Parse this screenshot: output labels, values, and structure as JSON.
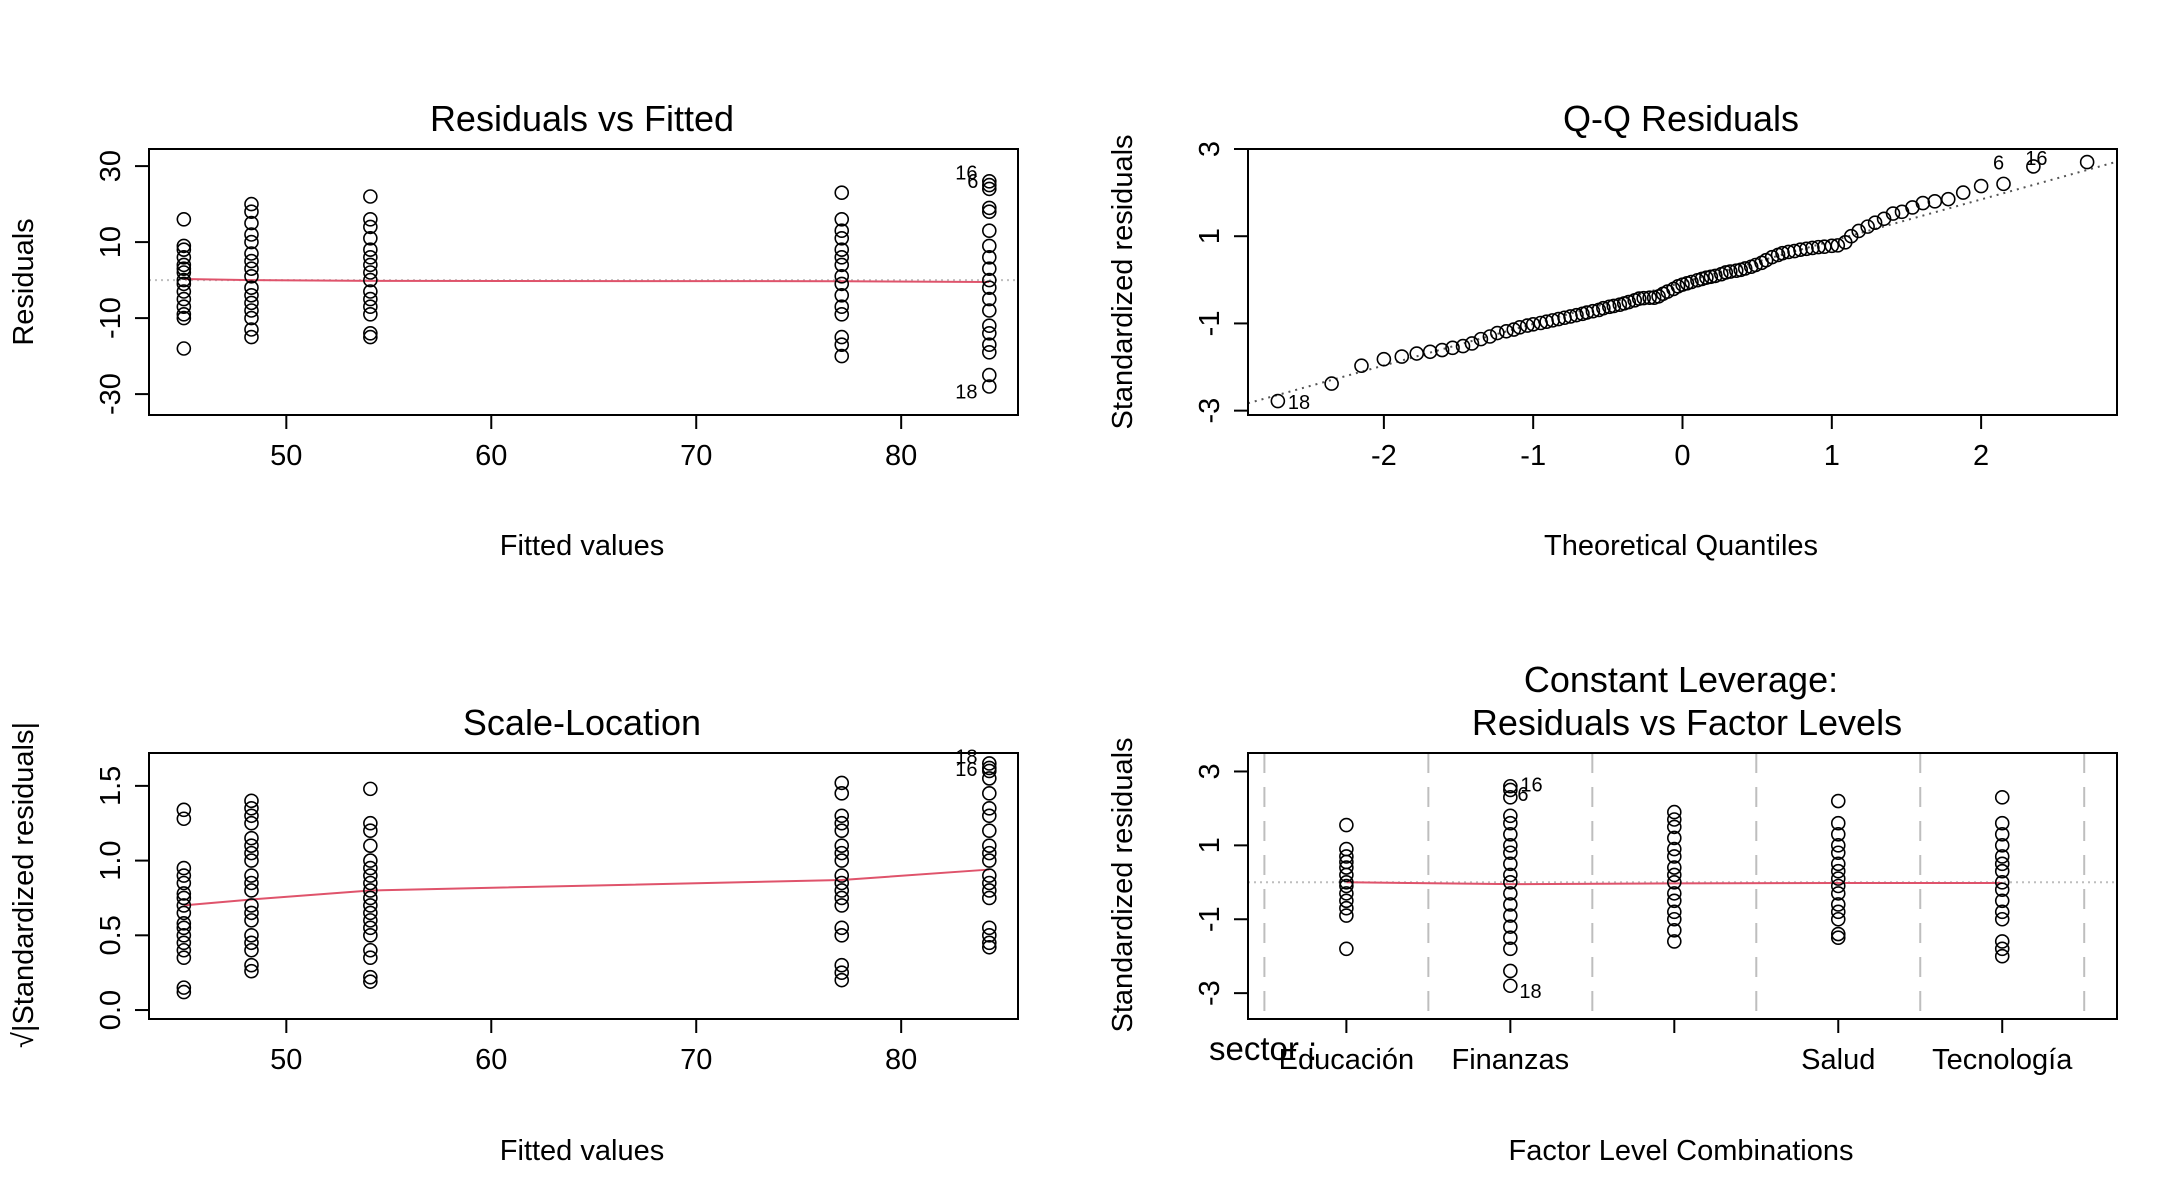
{
  "chart_data": [
    {
      "id": "rvf",
      "type": "scatter",
      "title": "Residuals vs Fitted",
      "xlabel": "Fitted values",
      "ylabel": "Residuals",
      "xlim": [
        43.3,
        85.7
      ],
      "ylim": [
        -35.5,
        34.5
      ],
      "x_ticks": [
        50,
        60,
        70,
        80
      ],
      "y_ticks": [
        30,
        10,
        -10,
        -30
      ],
      "colors": {
        "points": "#000000",
        "smoother": "#DF536B",
        "reference": "#BEBEBE"
      },
      "groups": [
        {
          "x": 45.0,
          "y": [
            16,
            9,
            8,
            6,
            4,
            3,
            2,
            0,
            -1,
            -3,
            -5,
            -7,
            -9,
            -10,
            -18
          ]
        },
        {
          "x": 48.3,
          "y": [
            20,
            18,
            15,
            12,
            10,
            7,
            5,
            3,
            1,
            -2,
            -4,
            -6,
            -8,
            -10,
            -13,
            -15
          ]
        },
        {
          "x": 54.1,
          "y": [
            22,
            16,
            14,
            11,
            8,
            6,
            4,
            2,
            0,
            -3,
            -5,
            -7,
            -9,
            -14,
            -15
          ]
        },
        {
          "x": 77.1,
          "y": [
            23,
            16,
            13,
            11,
            8,
            6,
            4,
            1,
            -1,
            -4,
            -7,
            -9,
            -15,
            -17,
            -20
          ]
        },
        {
          "x": 84.3,
          "y": [
            26,
            25,
            24,
            19,
            18,
            13,
            9,
            6,
            3,
            0,
            -2,
            -5,
            -8,
            -12,
            -14,
            -17,
            -19,
            -25,
            -28
          ]
        }
      ],
      "smoother": {
        "x": [
          45.0,
          48.3,
          54.1,
          77.1,
          84.3
        ],
        "y": [
          0.3,
          0.0,
          -0.2,
          -0.3,
          -0.5
        ]
      },
      "point_labels": [
        {
          "text": "16",
          "x": 84.3,
          "y": 26
        },
        {
          "text": "6",
          "x": 84.3,
          "y": 25
        },
        {
          "text": "18",
          "x": 84.3,
          "y": -28
        }
      ]
    },
    {
      "id": "qq",
      "type": "scatter",
      "title": "Q-Q Residuals",
      "xlabel": "Theoretical Quantiles",
      "ylabel": "Standardized residuals",
      "xlim": [
        -2.91,
        2.91
      ],
      "ylim": [
        -3.1,
        3.0
      ],
      "x_ticks": [
        -2,
        -1,
        0,
        1,
        2
      ],
      "y_ticks": [
        3,
        1,
        -1,
        -3
      ],
      "colors": {
        "points": "#000000",
        "reference": "#555555"
      },
      "reference_line": {
        "x": [
          -2.91,
          2.91
        ],
        "y": [
          -2.83,
          2.71
        ]
      },
      "points": [
        [
          -2.71,
          -2.78
        ],
        [
          -2.35,
          -2.38
        ],
        [
          -2.15,
          -1.97
        ],
        [
          -2.0,
          -1.82
        ],
        [
          -1.88,
          -1.76
        ],
        [
          -1.78,
          -1.69
        ],
        [
          -1.69,
          -1.65
        ],
        [
          -1.61,
          -1.61
        ],
        [
          -1.54,
          -1.56
        ],
        [
          -1.47,
          -1.52
        ],
        [
          -1.41,
          -1.46
        ],
        [
          -1.35,
          -1.36
        ],
        [
          -1.29,
          -1.3
        ],
        [
          -1.24,
          -1.22
        ],
        [
          -1.18,
          -1.18
        ],
        [
          -1.13,
          -1.14
        ],
        [
          -1.09,
          -1.09
        ],
        [
          -1.04,
          -1.05
        ],
        [
          -1.0,
          -1.02
        ],
        [
          -0.95,
          -0.99
        ],
        [
          -0.91,
          -0.96
        ],
        [
          -0.87,
          -0.93
        ],
        [
          -0.83,
          -0.9
        ],
        [
          -0.79,
          -0.87
        ],
        [
          -0.75,
          -0.84
        ],
        [
          -0.71,
          -0.81
        ],
        [
          -0.67,
          -0.78
        ],
        [
          -0.64,
          -0.75
        ],
        [
          -0.6,
          -0.72
        ],
        [
          -0.56,
          -0.69
        ],
        [
          -0.53,
          -0.65
        ],
        [
          -0.49,
          -0.62
        ],
        [
          -0.46,
          -0.6
        ],
        [
          -0.42,
          -0.57
        ],
        [
          -0.39,
          -0.54
        ],
        [
          -0.36,
          -0.51
        ],
        [
          -0.32,
          -0.47
        ],
        [
          -0.29,
          -0.43
        ],
        [
          -0.26,
          -0.42
        ],
        [
          -0.22,
          -0.41
        ],
        [
          -0.19,
          -0.41
        ],
        [
          -0.16,
          -0.38
        ],
        [
          -0.13,
          -0.32
        ],
        [
          -0.1,
          -0.27
        ],
        [
          -0.06,
          -0.21
        ],
        [
          -0.03,
          -0.15
        ],
        [
          0.0,
          -0.11
        ],
        [
          0.03,
          -0.08
        ],
        [
          0.06,
          -0.05
        ],
        [
          0.1,
          -0.01
        ],
        [
          0.13,
          0.02
        ],
        [
          0.16,
          0.05
        ],
        [
          0.19,
          0.07
        ],
        [
          0.22,
          0.09
        ],
        [
          0.26,
          0.13
        ],
        [
          0.29,
          0.17
        ],
        [
          0.32,
          0.19
        ],
        [
          0.36,
          0.21
        ],
        [
          0.39,
          0.23
        ],
        [
          0.42,
          0.26
        ],
        [
          0.46,
          0.3
        ],
        [
          0.49,
          0.34
        ],
        [
          0.53,
          0.39
        ],
        [
          0.56,
          0.45
        ],
        [
          0.6,
          0.52
        ],
        [
          0.64,
          0.57
        ],
        [
          0.67,
          0.61
        ],
        [
          0.71,
          0.64
        ],
        [
          0.75,
          0.66
        ],
        [
          0.79,
          0.69
        ],
        [
          0.83,
          0.71
        ],
        [
          0.87,
          0.73
        ],
        [
          0.91,
          0.75
        ],
        [
          0.95,
          0.76
        ],
        [
          1.0,
          0.78
        ],
        [
          1.04,
          0.79
        ],
        [
          1.09,
          0.86
        ],
        [
          1.13,
          1.0
        ],
        [
          1.18,
          1.12
        ],
        [
          1.24,
          1.22
        ],
        [
          1.29,
          1.31
        ],
        [
          1.35,
          1.4
        ],
        [
          1.41,
          1.52
        ],
        [
          1.47,
          1.56
        ],
        [
          1.54,
          1.66
        ],
        [
          1.61,
          1.76
        ],
        [
          1.69,
          1.8
        ],
        [
          1.78,
          1.85
        ],
        [
          1.88,
          2.0
        ],
        [
          2.0,
          2.15
        ],
        [
          2.15,
          2.2
        ],
        [
          2.35,
          2.6
        ],
        [
          2.71,
          2.7
        ]
      ],
      "point_labels": [
        {
          "text": "18",
          "x": -2.71,
          "y": -2.78
        },
        {
          "text": "6",
          "x": 2.2,
          "y": 2.6
        },
        {
          "text": "16",
          "x": 2.55,
          "y": 2.7
        }
      ]
    },
    {
      "id": "sl",
      "type": "scatter",
      "title": "Scale-Location",
      "xlabel": "Fitted values",
      "ylabel": "√|Standardized residuals|",
      "xlim": [
        43.3,
        85.7
      ],
      "ylim": [
        -0.06,
        1.72
      ],
      "x_ticks": [
        50,
        60,
        70,
        80
      ],
      "y_ticks": [
        0.0,
        0.5,
        1.0,
        1.5
      ],
      "colors": {
        "points": "#000000",
        "smoother": "#DF536B"
      },
      "groups": [
        {
          "x": 45.0,
          "y": [
            1.34,
            1.28,
            0.95,
            0.9,
            0.85,
            0.78,
            0.75,
            0.7,
            0.65,
            0.58,
            0.55,
            0.5,
            0.45,
            0.4,
            0.35,
            0.15,
            0.12
          ]
        },
        {
          "x": 48.3,
          "y": [
            1.4,
            1.35,
            1.3,
            1.25,
            1.15,
            1.1,
            1.05,
            1.0,
            0.9,
            0.85,
            0.8,
            0.7,
            0.65,
            0.6,
            0.5,
            0.45,
            0.4,
            0.3,
            0.26
          ]
        },
        {
          "x": 54.1,
          "y": [
            1.48,
            1.25,
            1.2,
            1.1,
            1.0,
            0.95,
            0.9,
            0.85,
            0.8,
            0.75,
            0.7,
            0.65,
            0.6,
            0.55,
            0.5,
            0.4,
            0.35,
            0.22,
            0.19
          ]
        },
        {
          "x": 77.1,
          "y": [
            1.52,
            1.45,
            1.3,
            1.25,
            1.2,
            1.1,
            1.05,
            1.0,
            0.9,
            0.85,
            0.8,
            0.75,
            0.7,
            0.55,
            0.5,
            0.3,
            0.25,
            0.2
          ]
        },
        {
          "x": 84.3,
          "y": [
            1.65,
            1.62,
            1.6,
            1.55,
            1.45,
            1.35,
            1.3,
            1.2,
            1.1,
            1.05,
            1.0,
            0.9,
            0.85,
            0.8,
            0.75,
            0.55,
            0.5,
            0.45,
            0.42
          ]
        }
      ],
      "smoother": {
        "x": [
          45.0,
          48.3,
          54.1,
          77.1,
          84.3
        ],
        "y": [
          0.7,
          0.74,
          0.8,
          0.87,
          0.94
        ]
      },
      "point_labels": [
        {
          "text": "18",
          "x": 84.3,
          "y": 1.65
        },
        {
          "text": "16",
          "x": 84.3,
          "y": 1.6
        }
      ]
    },
    {
      "id": "lev",
      "type": "scatter",
      "title": "Constant Leverage:",
      "subtitle": "Residuals vs Factor Levels",
      "xlabel": "Factor Level Combinations",
      "ylabel": "Standardized residuals",
      "factor_name": "sector :",
      "xlim": [
        0.4,
        5.7
      ],
      "ylim": [
        -3.7,
        3.5
      ],
      "y_ticks": [
        3,
        1,
        -1,
        -3
      ],
      "x_tick_positions": [
        1,
        2,
        3,
        4,
        5
      ],
      "x_tick_labels": [
        {
          "pos": 1,
          "text": "Educación"
        },
        {
          "pos": 2,
          "text": "Finanzas"
        },
        {
          "pos": 4,
          "text": "Salud"
        },
        {
          "pos": 5,
          "text": "Tecnología"
        }
      ],
      "level_boundaries": [
        0.5,
        1.5,
        2.5,
        3.5,
        4.5,
        5.5
      ],
      "colors": {
        "points": "#000000",
        "smoother": "#DF536B",
        "boundaries": "#BEBEBE",
        "reference": "#BEBEBE"
      },
      "groups": [
        {
          "x": 1,
          "y": [
            1.55,
            0.9,
            0.7,
            0.55,
            0.4,
            0.2,
            0.0,
            -0.1,
            -0.3,
            -0.5,
            -0.7,
            -0.9,
            -1.8
          ]
        },
        {
          "x": 2,
          "y": [
            2.6,
            2.5,
            2.3,
            1.8,
            1.6,
            1.3,
            1.0,
            0.8,
            0.5,
            0.2,
            0.0,
            -0.3,
            -0.6,
            -0.9,
            -1.2,
            -1.5,
            -1.8,
            -2.4,
            -2.8
          ]
        },
        {
          "x": 3,
          "y": [
            1.9,
            1.7,
            1.5,
            1.2,
            0.9,
            0.7,
            0.4,
            0.2,
            0.0,
            -0.3,
            -0.5,
            -0.8,
            -1.0,
            -1.3,
            -1.6
          ]
        },
        {
          "x": 4,
          "y": [
            2.2,
            1.6,
            1.3,
            1.0,
            0.8,
            0.5,
            0.3,
            0.1,
            -0.1,
            -0.3,
            -0.6,
            -0.8,
            -1.0,
            -1.4,
            -1.5
          ]
        },
        {
          "x": 5,
          "y": [
            2.3,
            1.6,
            1.3,
            1.0,
            0.7,
            0.5,
            0.3,
            0.0,
            -0.2,
            -0.5,
            -0.8,
            -1.0,
            -1.6,
            -1.8,
            -2.0
          ]
        }
      ],
      "smoother": {
        "x": [
          1,
          2,
          3,
          4,
          5
        ],
        "y": [
          0.0,
          -0.05,
          -0.03,
          -0.02,
          -0.02
        ]
      },
      "point_labels": [
        {
          "text": "16",
          "x": 2,
          "y": 2.6
        },
        {
          "text": "6",
          "x": 2,
          "y": 2.5
        },
        {
          "text": "18",
          "x": 2,
          "y": -2.8
        }
      ]
    }
  ]
}
